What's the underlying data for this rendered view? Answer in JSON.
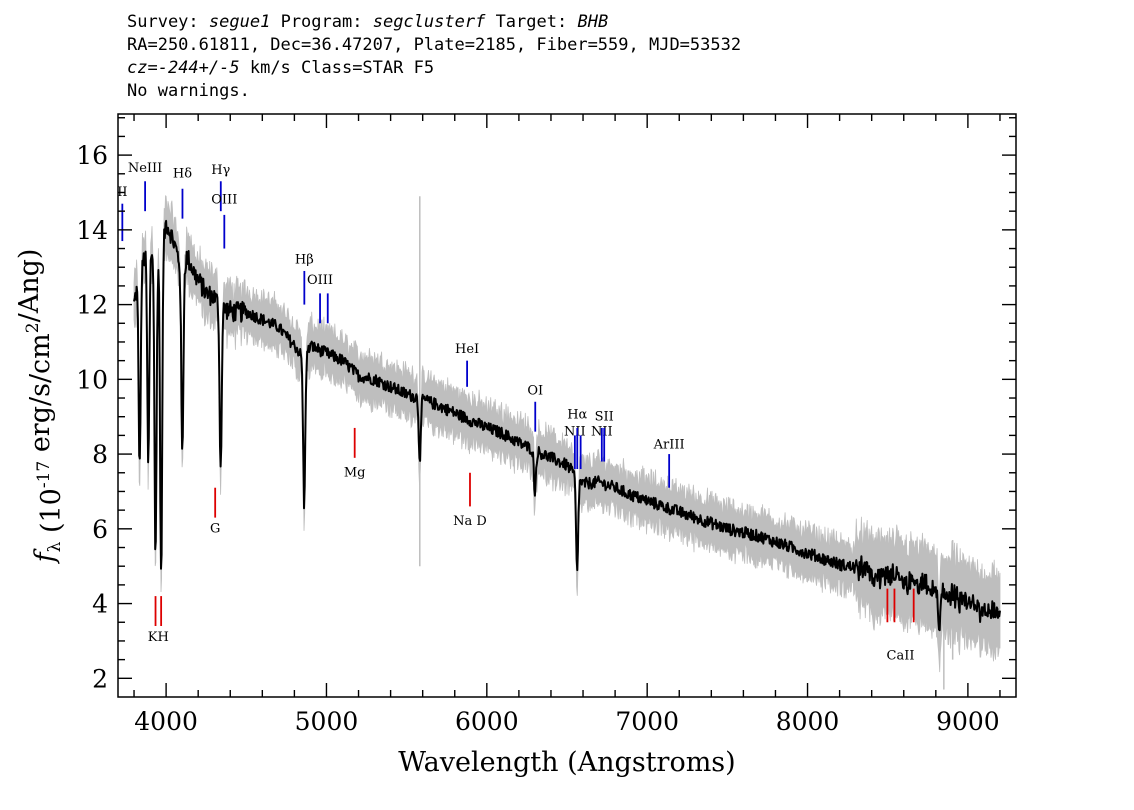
{
  "header": {
    "survey_label": "Survey:",
    "survey": "segue1",
    "program_label": "Program:",
    "program": "segclusterf",
    "target_label": "Target:",
    "target": "BHB",
    "line2": "RA=250.61811, Dec=36.47207, Plate=2185, Fiber=559, MJD=53532",
    "cz_prefix": "cz=",
    "cz_value": "-244+/-5",
    "cz_suffix": " km/s Class=STAR F5",
    "line4": "No warnings."
  },
  "chart_data": {
    "type": "line",
    "xlabel": "Wavelength (Angstroms)",
    "ylabel": "f_λ (10^-17 erg/s/cm^2/Ang)",
    "xlim": [
      3700,
      9300
    ],
    "ylim": [
      1.5,
      17.1
    ],
    "xticks": [
      4000,
      5000,
      6000,
      7000,
      8000,
      9000
    ],
    "yticks": [
      2,
      4,
      6,
      8,
      10,
      12,
      14,
      16
    ],
    "grid": false,
    "colors": {
      "spectrum": "#000000",
      "noise": "#bebebe",
      "emission": "#0000cc",
      "absorption": "#dd0000"
    },
    "series": [
      {
        "name": "",
        "x": [
          3800,
          3830,
          3860,
          3890,
          3910,
          3935,
          3970,
          4000,
          4030,
          4060,
          4080,
          4101,
          4130,
          4180,
          4250,
          4300,
          4330,
          4340,
          4360,
          4420,
          4500,
          4600,
          4700,
          4780,
          4820,
          4861,
          4900,
          4950,
          5000,
          5100,
          5200,
          5300,
          5400,
          5500,
          5580,
          5700,
          5800,
          5900,
          6000,
          6100,
          6200,
          6300,
          6400,
          6500,
          6540,
          6563,
          6600,
          6700,
          6800,
          6900,
          7000,
          7100,
          7200,
          7300,
          7400,
          7500,
          7600,
          7700,
          7800,
          7900,
          8000,
          8100,
          8200,
          8300,
          8400,
          8500,
          8600,
          8700,
          8800,
          8900,
          9000,
          9100,
          9200
        ],
        "y": [
          12.0,
          12.8,
          13.2,
          13.5,
          13.4,
          13.4,
          13.3,
          14.2,
          13.9,
          13.5,
          13.2,
          12.8,
          13.3,
          12.8,
          12.3,
          12.2,
          12.0,
          11.7,
          11.9,
          11.8,
          11.8,
          11.6,
          11.4,
          11.0,
          10.8,
          10.5,
          10.9,
          10.8,
          10.7,
          10.5,
          10.1,
          10.0,
          9.8,
          9.6,
          9.5,
          9.3,
          9.1,
          8.9,
          8.7,
          8.55,
          8.3,
          8.1,
          7.9,
          7.7,
          7.5,
          7.35,
          7.2,
          7.25,
          7.1,
          6.9,
          6.75,
          6.6,
          6.45,
          6.3,
          6.15,
          6.0,
          5.9,
          5.8,
          5.65,
          5.5,
          5.35,
          5.2,
          5.05,
          4.95,
          4.8,
          4.7,
          4.6,
          4.5,
          4.35,
          4.2,
          4.0,
          3.85,
          3.7
        ]
      }
    ],
    "absorption_dips": [
      {
        "x": 3835,
        "y": 7.6
      },
      {
        "x": 3889,
        "y": 7.7
      },
      {
        "x": 3934,
        "y": 5.1
      },
      {
        "x": 3969,
        "y": 4.6
      },
      {
        "x": 4101,
        "y": 7.9
      },
      {
        "x": 4340,
        "y": 7.6
      },
      {
        "x": 4861,
        "y": 6.6
      },
      {
        "x": 5582,
        "y": 7.9
      },
      {
        "x": 6300,
        "y": 7.0
      },
      {
        "x": 6563,
        "y": 4.8
      },
      {
        "x": 8820,
        "y": 3.1
      }
    ],
    "noise_spikes": [
      {
        "x": 5582,
        "y1": 5.0,
        "y2": 14.9
      },
      {
        "x": 8850,
        "y1": 1.7,
        "y2": 4.3
      },
      {
        "x": 8905,
        "y1": 2.5,
        "y2": 5.7
      }
    ],
    "emission_lines": [
      {
        "label": "II",
        "x": 3727,
        "y1": 13.7,
        "y2": 14.7,
        "label_y": 14.9
      },
      {
        "label": "NeIII",
        "x": 3869,
        "y1": 14.5,
        "y2": 15.3,
        "label_y": 15.55
      },
      {
        "label": "Hδ",
        "x": 4102,
        "y1": 14.3,
        "y2": 15.1,
        "label_y": 15.4
      },
      {
        "label": "Hγ",
        "x": 4341,
        "y1": 14.5,
        "y2": 15.3,
        "label_y": 15.5
      },
      {
        "label": "OIII",
        "x": 4363,
        "y1": 13.5,
        "y2": 14.4,
        "label_y": 14.7
      },
      {
        "label": "Hβ",
        "x": 4862,
        "y1": 12.0,
        "y2": 12.9,
        "label_y": 13.1
      },
      {
        "label": "OIII",
        "x": 4960,
        "y1": 11.5,
        "y2": 12.3,
        "label_y": 12.55
      },
      {
        "label": "",
        "x": 5008,
        "y1": 11.5,
        "y2": 12.3,
        "label_y": 12.55
      },
      {
        "label": "HeI",
        "x": 5877,
        "y1": 9.8,
        "y2": 10.5,
        "label_y": 10.7
      },
      {
        "label": "OI",
        "x": 6302,
        "y1": 8.6,
        "y2": 9.4,
        "label_y": 9.6
      },
      {
        "label": "NII",
        "x": 6549,
        "y1": 7.6,
        "y2": 8.5,
        "label_y": 8.5
      },
      {
        "label": "Hα",
        "x": 6564,
        "y1": 7.6,
        "y2": 8.7,
        "label_y": 8.95
      },
      {
        "label": "",
        "x": 6585,
        "y1": 7.6,
        "y2": 8.5,
        "label_y": 8.5
      },
      {
        "label": "NII",
        "x": 6717,
        "y1": 7.8,
        "y2": 8.7,
        "label_y": 8.5
      },
      {
        "label": "SII",
        "x": 6732,
        "y1": 7.8,
        "y2": 8.7,
        "label_y": 8.9
      },
      {
        "label": "ArIII",
        "x": 7137,
        "y1": 7.1,
        "y2": 8.0,
        "label_y": 8.15
      }
    ],
    "absorption_lines": [
      {
        "label": "KH",
        "x": 3934,
        "x2": 3969,
        "y1": 3.4,
        "y2": 4.2,
        "label_y": 3.0
      },
      {
        "label": "G",
        "x": 4306,
        "y1": 6.3,
        "y2": 7.1,
        "label_y": 5.9
      },
      {
        "label": "Mg",
        "x": 5176,
        "y1": 7.9,
        "y2": 8.7,
        "label_y": 7.4
      },
      {
        "label": "Na D",
        "x": 5895,
        "y1": 6.6,
        "y2": 7.5,
        "label_y": 6.1
      },
      {
        "label": "CaII",
        "x": 8498,
        "x2": 8542,
        "x3": 8662,
        "y1": 3.5,
        "y2": 4.4,
        "label_y": 2.5
      }
    ]
  }
}
